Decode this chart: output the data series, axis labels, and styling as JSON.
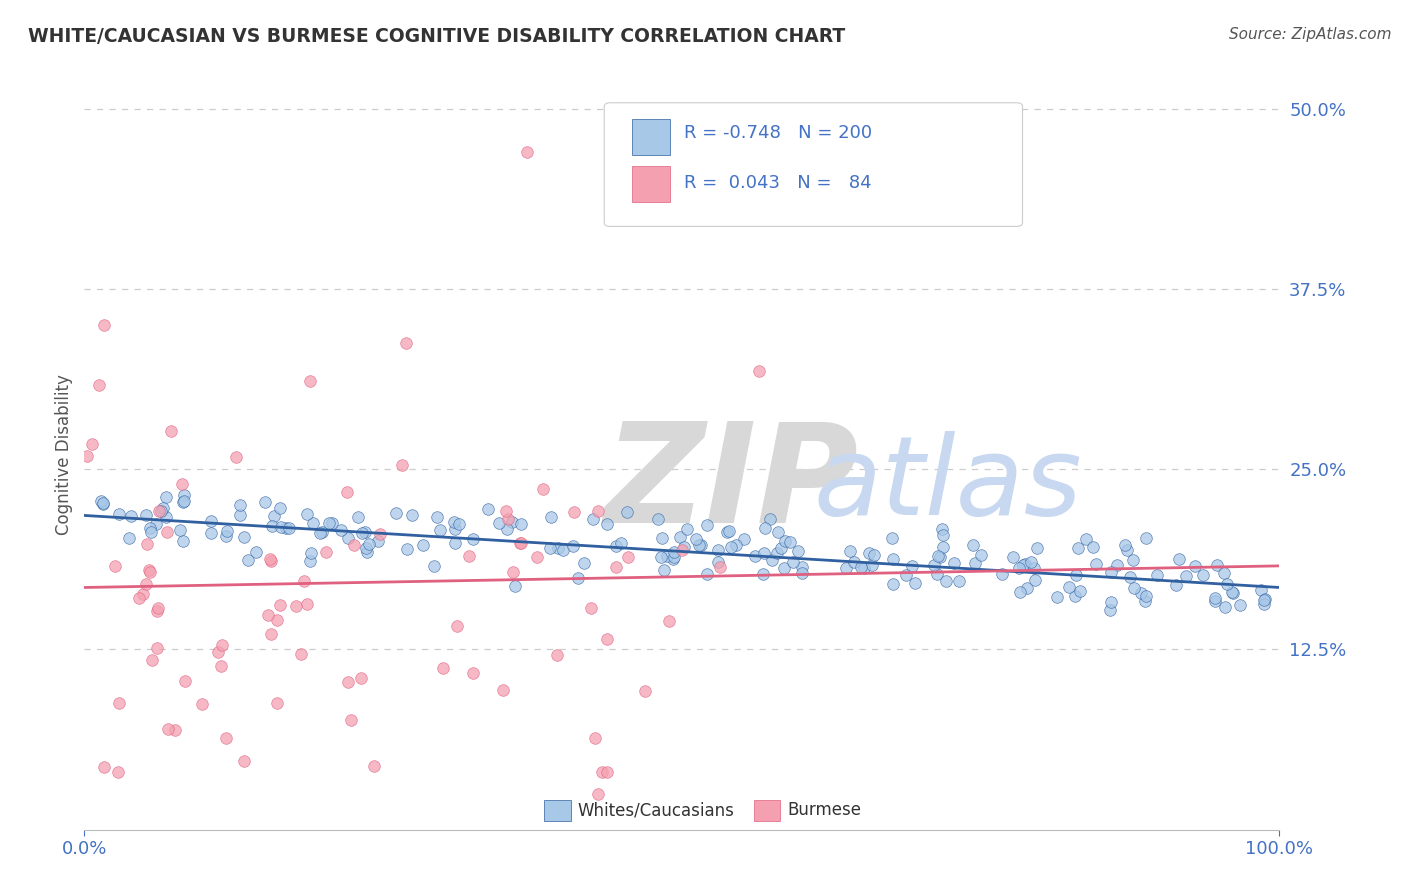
{
  "title": "WHITE/CAUCASIAN VS BURMESE COGNITIVE DISABILITY CORRELATION CHART",
  "source": "Source: ZipAtlas.com",
  "ylabel": "Cognitive Disability",
  "yticks": [
    0.0,
    0.125,
    0.25,
    0.375,
    0.5
  ],
  "ytick_labels": [
    "",
    "12.5%",
    "25.0%",
    "37.5%",
    "50.0%"
  ],
  "xlim": [
    0.0,
    1.0
  ],
  "ylim": [
    0.0,
    0.52
  ],
  "blue_R": -0.748,
  "blue_N": 200,
  "pink_R": 0.043,
  "pink_N": 84,
  "blue_color": "#A8C8E8",
  "pink_color": "#F4A0B0",
  "blue_line_color": "#3060A0",
  "pink_line_color": "#E06080",
  "grid_color": "#CCCCCC",
  "title_color": "#333333",
  "tick_color": "#4472C4",
  "background_color": "#FFFFFF",
  "legend_label_blue": "Whites/Caucasians",
  "legend_label_pink": "Burmese",
  "blue_trend_start_y": 0.218,
  "blue_trend_end_y": 0.168,
  "pink_trend_start_y": 0.168,
  "pink_trend_end_y": 0.183,
  "watermark_zip_color": "#D8D8D8",
  "watermark_atlas_color": "#C8D8F0"
}
